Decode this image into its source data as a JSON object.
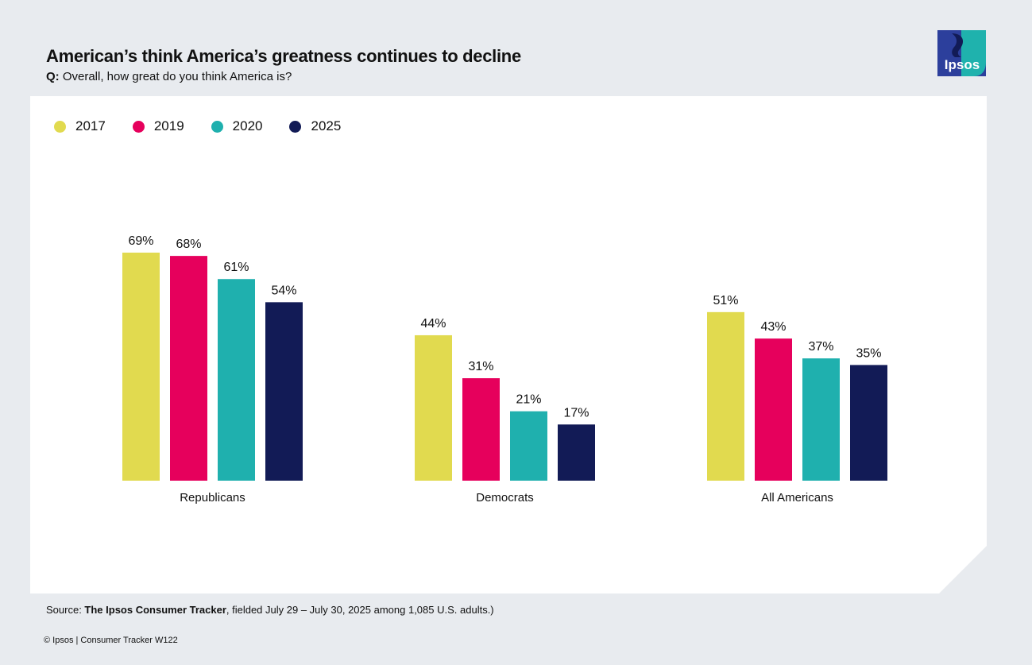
{
  "header": {
    "title": "American’s think America’s greatness continues to decline",
    "question_prefix": "Q:",
    "question_text": " Overall, how great do you think America is?"
  },
  "logo": {
    "text": "Ipsos",
    "colors": [
      "#2c3f9c",
      "#1fb2ad"
    ]
  },
  "footer": {
    "source_prefix": "Source: ",
    "source_bold": "The Ipsos Consumer Tracker",
    "source_rest": ", fielded July 29 – July 30, 2025 among 1,085 U.S. adults.)",
    "copyright": "© Ipsos | Consumer Tracker W122"
  },
  "chart_data": {
    "type": "bar",
    "title": "American’s think America’s greatness continues to decline",
    "categories": [
      "Republicans",
      "Democrats",
      "All Americans"
    ],
    "series": [
      {
        "name": "2017",
        "color": "#e1da4f",
        "values": [
          69,
          44,
          51
        ]
      },
      {
        "name": "2019",
        "color": "#e6005c",
        "values": [
          68,
          31,
          43
        ]
      },
      {
        "name": "2020",
        "color": "#1fb0ae",
        "values": [
          61,
          21,
          37
        ]
      },
      {
        "name": "2025",
        "color": "#121b56",
        "values": [
          54,
          17,
          35
        ]
      }
    ],
    "value_suffix": "%",
    "ylim": [
      0,
      100
    ],
    "grid": false,
    "legend": "top-left"
  }
}
